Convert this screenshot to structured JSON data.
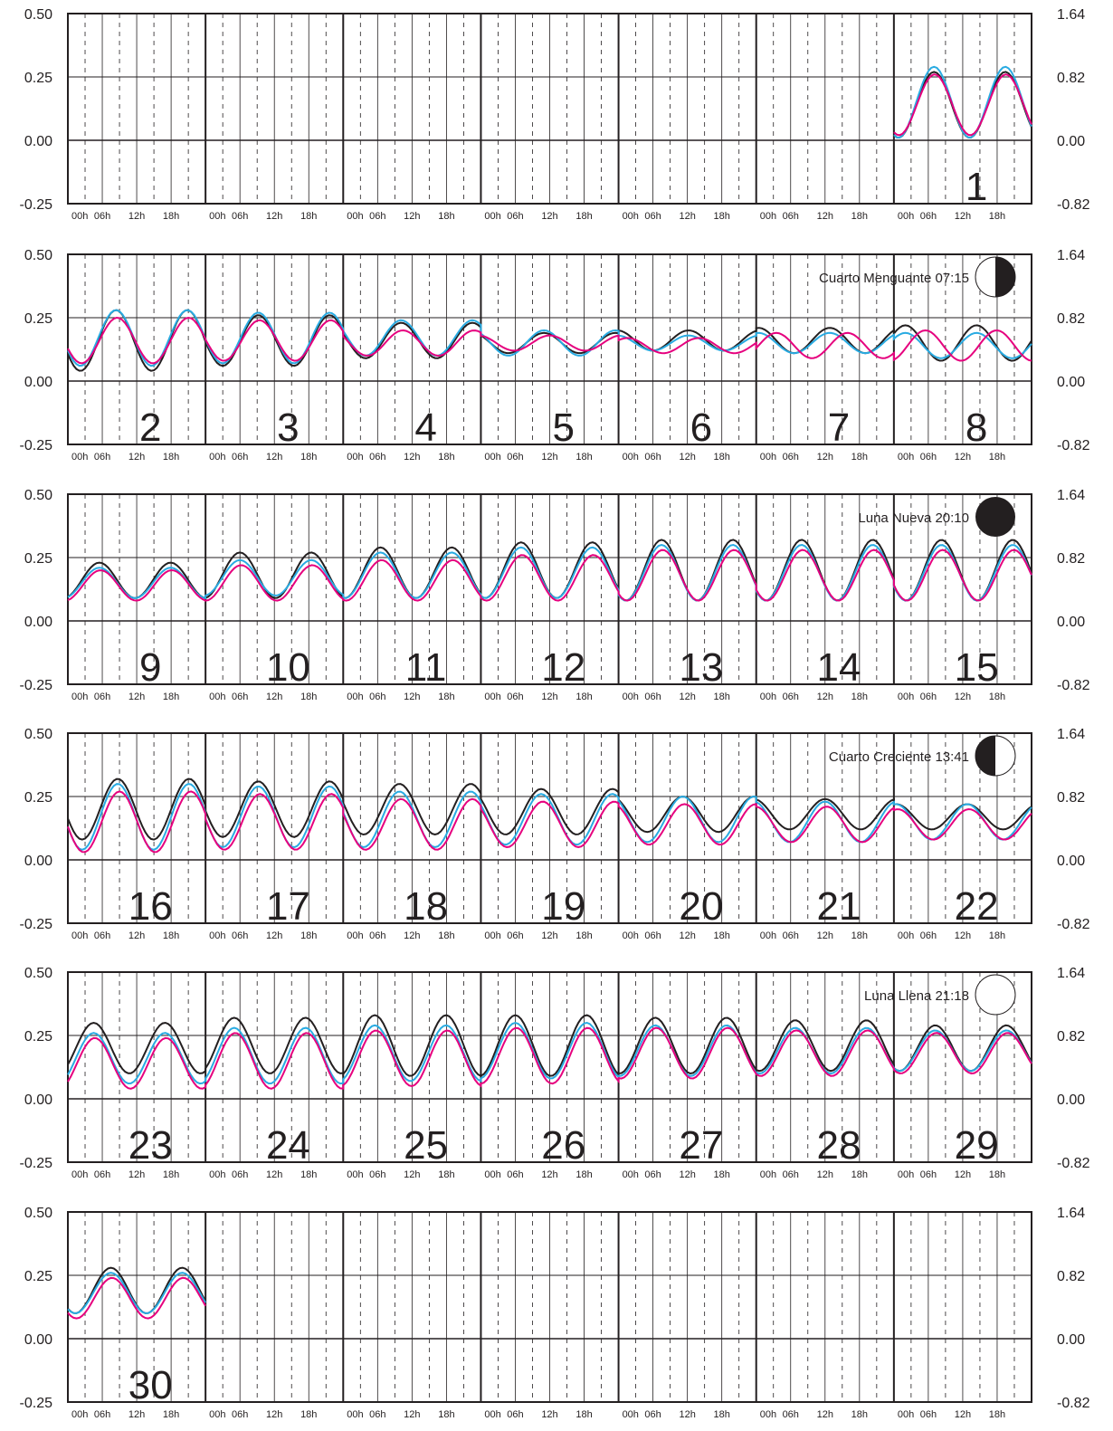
{
  "chart_data": {
    "type": "line",
    "left_axis_ticks": [
      "0.50",
      "0.25",
      "0.00",
      "-0.25"
    ],
    "right_axis_ticks": [
      "1.64",
      "0.82",
      "0.00",
      "-0.82"
    ],
    "ylim": [
      -0.25,
      0.5
    ],
    "hour_ticks": [
      "00h",
      "06h",
      "12h",
      "18h"
    ],
    "grid": true,
    "series_colors": {
      "black": "#231f20",
      "cyan": "#29abe2",
      "magenta": "#e6007e"
    },
    "panels": [
      {
        "days": [
          "",
          "",
          "",
          "",
          "",
          "",
          "1"
        ],
        "data_start_col": 6,
        "data_end_col": 7,
        "moon_phase": null,
        "series": [
          {
            "color": "#231f20",
            "mean": [
              0.14,
              0.15
            ],
            "amp": [
              0.13,
              0.12
            ],
            "peak_hour": [
              7.0,
              7.6
            ]
          },
          {
            "color": "#29abe2",
            "mean": [
              0.15,
              0.16
            ],
            "amp": [
              0.14,
              0.12
            ],
            "peak_hour": [
              7.0,
              7.6
            ]
          },
          {
            "color": "#e6007e",
            "mean": [
              0.14,
              0.15
            ],
            "amp": [
              0.12,
              0.11
            ],
            "peak_hour": [
              7.1,
              7.8
            ]
          }
        ]
      },
      {
        "days": [
          "2",
          "3",
          "4",
          "5",
          "6",
          "7",
          "8"
        ],
        "data_start_col": 0,
        "data_end_col": 7,
        "moon_phase": {
          "label": "Cuarto Menguante 07:15",
          "kind": "last-quarter"
        },
        "series": [
          {
            "color": "#231f20",
            "mean": [
              0.16,
              0.16,
              0.16,
              0.15,
              0.16,
              0.16,
              0.15
            ],
            "amp": [
              0.12,
              0.1,
              0.07,
              0.04,
              0.04,
              0.05,
              0.07
            ],
            "peak_hour": [
              8.4,
              9.2,
              10.1,
              11.0,
              12.2,
              0.4,
              2.0
            ]
          },
          {
            "color": "#29abe2",
            "mean": [
              0.17,
              0.17,
              0.17,
              0.15,
              0.15,
              0.15,
              0.14
            ],
            "amp": [
              0.11,
              0.1,
              0.07,
              0.05,
              0.03,
              0.04,
              0.05
            ],
            "peak_hour": [
              8.4,
              9.2,
              10.1,
              11.0,
              12.2,
              0.4,
              2.0
            ]
          },
          {
            "color": "#e6007e",
            "mean": [
              0.16,
              0.16,
              0.15,
              0.15,
              0.14,
              0.14,
              0.14
            ],
            "amp": [
              0.09,
              0.08,
              0.05,
              0.03,
              0.03,
              0.05,
              0.06
            ],
            "peak_hour": [
              8.6,
              9.4,
              10.4,
              12.0,
              14.0,
              3.5,
              5.5
            ]
          }
        ]
      },
      {
        "days": [
          "9",
          "10",
          "11",
          "12",
          "13",
          "14",
          "15"
        ],
        "data_start_col": 0,
        "data_end_col": 7,
        "moon_phase": {
          "label": "Luna Nueva 20:10",
          "kind": "new"
        },
        "series": [
          {
            "color": "#231f20",
            "mean": [
              0.16,
              0.18,
              0.19,
              0.2,
              0.2,
              0.2,
              0.2
            ],
            "amp": [
              0.07,
              0.09,
              0.1,
              0.11,
              0.12,
              0.12,
              0.12
            ],
            "peak_hour": [
              5.5,
              6.0,
              6.5,
              7.0,
              7.5,
              7.9,
              8.3
            ]
          },
          {
            "color": "#29abe2",
            "mean": [
              0.15,
              0.17,
              0.18,
              0.19,
              0.19,
              0.19,
              0.19
            ],
            "amp": [
              0.06,
              0.07,
              0.09,
              0.1,
              0.11,
              0.11,
              0.11
            ],
            "peak_hour": [
              5.5,
              6.0,
              6.5,
              7.0,
              7.5,
              7.9,
              8.3
            ]
          },
          {
            "color": "#e6007e",
            "mean": [
              0.14,
              0.15,
              0.16,
              0.17,
              0.18,
              0.18,
              0.18
            ],
            "amp": [
              0.06,
              0.07,
              0.08,
              0.09,
              0.1,
              0.1,
              0.1
            ],
            "peak_hour": [
              5.7,
              6.2,
              6.7,
              7.2,
              7.7,
              8.1,
              8.5
            ]
          }
        ]
      },
      {
        "days": [
          "16",
          "17",
          "18",
          "19",
          "20",
          "21",
          "22"
        ],
        "data_start_col": 0,
        "data_end_col": 7,
        "moon_phase": {
          "label": "Cuarto Creciente 13:41",
          "kind": "first-quarter"
        },
        "series": [
          {
            "color": "#231f20",
            "mean": [
              0.2,
              0.2,
              0.2,
              0.19,
              0.18,
              0.18,
              0.17
            ],
            "amp": [
              0.12,
              0.11,
              0.1,
              0.09,
              0.07,
              0.06,
              0.05
            ],
            "peak_hour": [
              8.7,
              9.2,
              9.8,
              10.5,
              11.2,
              12.0,
              12.8
            ]
          },
          {
            "color": "#29abe2",
            "mean": [
              0.17,
              0.17,
              0.16,
              0.16,
              0.16,
              0.15,
              0.15
            ],
            "amp": [
              0.13,
              0.12,
              0.11,
              0.1,
              0.09,
              0.08,
              0.07
            ],
            "peak_hour": [
              8.7,
              9.2,
              9.8,
              10.5,
              11.2,
              12.0,
              12.8
            ]
          },
          {
            "color": "#e6007e",
            "mean": [
              0.15,
              0.15,
              0.14,
              0.14,
              0.14,
              0.14,
              0.14
            ],
            "amp": [
              0.12,
              0.11,
              0.1,
              0.09,
              0.08,
              0.07,
              0.06
            ],
            "peak_hour": [
              9.0,
              9.5,
              10.1,
              10.8,
              11.5,
              12.3,
              13.1
            ]
          }
        ]
      },
      {
        "days": [
          "23",
          "24",
          "25",
          "26",
          "27",
          "28",
          "29"
        ],
        "data_start_col": 0,
        "data_end_col": 7,
        "moon_phase": {
          "label": "Luna Llena 21:18",
          "kind": "full"
        },
        "series": [
          {
            "color": "#231f20",
            "mean": [
              0.2,
              0.21,
              0.21,
              0.21,
              0.21,
              0.21,
              0.2
            ],
            "amp": [
              0.1,
              0.11,
              0.12,
              0.12,
              0.11,
              0.1,
              0.09
            ],
            "peak_hour": [
              4.5,
              5.0,
              5.5,
              6.0,
              6.4,
              6.8,
              7.2
            ]
          },
          {
            "color": "#29abe2",
            "mean": [
              0.16,
              0.17,
              0.18,
              0.19,
              0.19,
              0.19,
              0.19
            ],
            "amp": [
              0.1,
              0.11,
              0.11,
              0.11,
              0.1,
              0.09,
              0.08
            ],
            "peak_hour": [
              4.5,
              5.0,
              5.5,
              6.0,
              6.4,
              6.8,
              7.2
            ]
          },
          {
            "color": "#e6007e",
            "mean": [
              0.14,
              0.15,
              0.16,
              0.17,
              0.18,
              0.18,
              0.18
            ],
            "amp": [
              0.1,
              0.11,
              0.11,
              0.11,
              0.1,
              0.09,
              0.08
            ],
            "peak_hour": [
              4.7,
              5.2,
              5.7,
              6.2,
              6.6,
              7.0,
              7.4
            ]
          }
        ]
      },
      {
        "days": [
          "30",
          "",
          "",
          "",
          "",
          "",
          ""
        ],
        "data_start_col": 0,
        "data_end_col": 1,
        "moon_phase": null,
        "series": [
          {
            "color": "#231f20",
            "mean": [
              0.19
            ],
            "amp": [
              0.09
            ],
            "peak_hour": [
              7.5
            ]
          },
          {
            "color": "#29abe2",
            "mean": [
              0.18
            ],
            "amp": [
              0.08
            ],
            "peak_hour": [
              7.5
            ]
          },
          {
            "color": "#e6007e",
            "mean": [
              0.16
            ],
            "amp": [
              0.08
            ],
            "peak_hour": [
              7.7
            ]
          }
        ]
      }
    ]
  }
}
